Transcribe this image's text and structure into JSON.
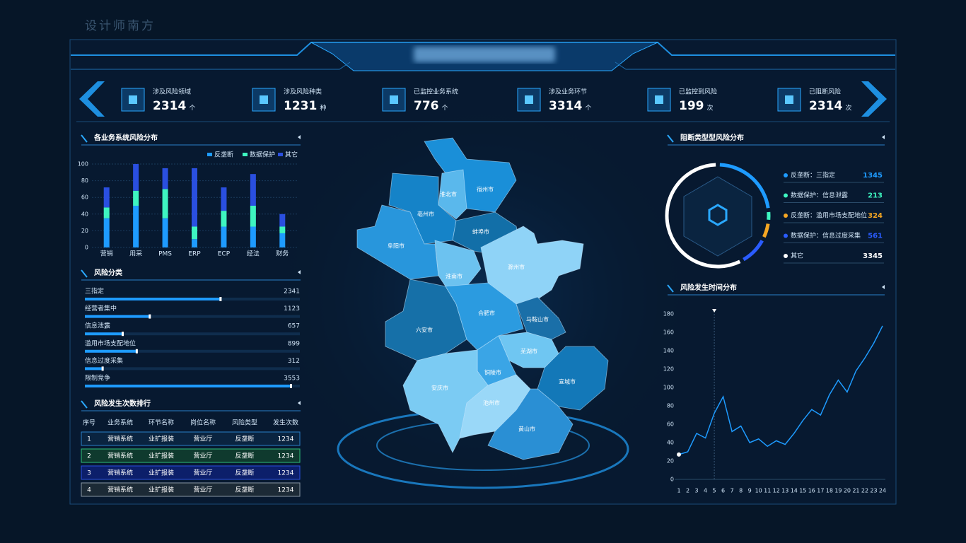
{
  "watermark": "设计师南方",
  "stats": [
    {
      "label": "涉及风险领域",
      "value": 2314,
      "unit": "个"
    },
    {
      "label": "涉及风险种类",
      "value": 1231,
      "unit": "种"
    },
    {
      "label": "已监控业务系统",
      "value": 776,
      "unit": "个"
    },
    {
      "label": "涉及业务环节",
      "value": 3314,
      "unit": "个"
    },
    {
      "label": "已监控到风险",
      "value": 199,
      "unit": "次"
    },
    {
      "label": "已阻断风险",
      "value": 2314,
      "unit": "次"
    }
  ],
  "map": {
    "regions": [
      "宿州市",
      "淮北市",
      "亳州市",
      "阜阳市",
      "蚌埠市",
      "淮南市",
      "滁州市",
      "六安市",
      "合肥市",
      "马鞍山市",
      "芜湖市",
      "铜陵市",
      "宣城市",
      "安庆市",
      "池州市",
      "黄山市"
    ]
  },
  "table": {
    "title": "风险发生次数排行",
    "header": [
      "序号",
      "业务系统",
      "环节名称",
      "岗位名称",
      "风险类型",
      "发生次数"
    ],
    "rows": [
      [
        1,
        "营销系统",
        "业扩报装",
        "营业厅",
        "反垄断",
        1234
      ],
      [
        2,
        "营销系统",
        "业扩报装",
        "营业厅",
        "反垄断",
        1234
      ],
      [
        3,
        "营销系统",
        "业扩报装",
        "营业厅",
        "反垄断",
        1234
      ],
      [
        4,
        "营销系统",
        "业扩报装",
        "营业厅",
        "反垄断",
        1234
      ]
    ]
  },
  "chart_data": [
    {
      "type": "bar",
      "stacked": true,
      "title": "各业务系统风险分布",
      "categories": [
        "营销",
        "用采",
        "PMS",
        "ERP",
        "ECP",
        "经法",
        "财务"
      ],
      "series": [
        {
          "name": "反垄断",
          "color": "#1e9bff",
          "values": [
            35,
            50,
            35,
            10,
            25,
            25,
            17
          ]
        },
        {
          "name": "数据保护",
          "color": "#3ef5c0",
          "values": [
            13,
            18,
            35,
            15,
            19,
            25,
            8
          ]
        },
        {
          "name": "其它",
          "color": "#2a4fe0",
          "values": [
            24,
            32,
            25,
            70,
            28,
            38,
            15
          ]
        }
      ],
      "ylim": [
        0,
        100
      ],
      "yticks": [
        0,
        20,
        40,
        60,
        80,
        100
      ]
    },
    {
      "type": "hbar",
      "title": "风险分类",
      "categories": [
        "三指定",
        "经营者集中",
        "信息泄露",
        "滥用市场支配地位",
        "信息过度采集",
        "限制竞争"
      ],
      "values": [
        2341,
        1123,
        657,
        899,
        312,
        3553
      ],
      "color": "#1e9bff"
    },
    {
      "type": "pie",
      "title": "阻断类型型风险分布",
      "categories": [
        "反垄断：三指定",
        "数据保护：信息泄露",
        "反垄断：滥用市场支配地位",
        "数据保护：信息过度采集",
        "其它"
      ],
      "values": [
        1345,
        213,
        324,
        561,
        3345
      ],
      "colors": [
        "#1e9bff",
        "#3ef5c0",
        "#f5a623",
        "#2a5cff",
        "#ffffff"
      ]
    },
    {
      "type": "line",
      "title": "风险发生时间分布",
      "x": [
        1,
        2,
        3,
        4,
        5,
        6,
        7,
        8,
        9,
        10,
        11,
        12,
        13,
        14,
        15,
        16,
        17,
        18,
        19,
        20,
        21,
        22,
        23,
        24
      ],
      "values": [
        27,
        30,
        50,
        45,
        72,
        90,
        52,
        58,
        40,
        44,
        36,
        42,
        38,
        50,
        64,
        76,
        70,
        92,
        108,
        95,
        118,
        132,
        148,
        167
      ],
      "color": "#1e9bff",
      "xlim": [
        1,
        24
      ],
      "ylim": [
        0,
        180
      ],
      "yticks": [
        0,
        20,
        40,
        60,
        80,
        100,
        120,
        140,
        160,
        180
      ]
    }
  ]
}
